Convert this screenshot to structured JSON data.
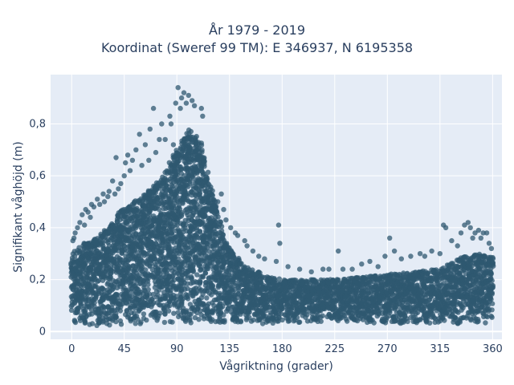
{
  "chart_data": {
    "type": "scatter",
    "title": "År 1979 - 2019",
    "subtitle": "Koordinat (Sweref 99 TM): E 346937, N 6195358",
    "xlabel": "Vågriktning (grader)",
    "ylabel": "Signifikant våghöjd (m)",
    "xlim": [
      -18,
      368
    ],
    "ylim": [
      -0.03,
      0.99
    ],
    "x_ticks": [
      0,
      45,
      90,
      135,
      180,
      225,
      270,
      315,
      360
    ],
    "x_tick_labels": [
      "0",
      "45",
      "90",
      "135",
      "180",
      "225",
      "270",
      "315",
      "360"
    ],
    "y_ticks": [
      0,
      0.2,
      0.4,
      0.6,
      0.8
    ],
    "y_tick_labels": [
      "0",
      "0,2",
      "0,4",
      "0,6",
      "0,8"
    ],
    "grid": true,
    "marker_color": "#2f5870",
    "background": "#e5ecf6",
    "envelope": {
      "x": [
        0,
        10,
        20,
        30,
        45,
        60,
        75,
        90,
        100,
        110,
        120,
        130,
        135,
        150,
        165,
        180,
        225,
        270,
        315,
        330,
        345,
        360
      ],
      "lower": [
        0.03,
        0.02,
        0.02,
        0.02,
        0.02,
        0.03,
        0.03,
        0.03,
        0.03,
        0.03,
        0.03,
        0.03,
        0.03,
        0.03,
        0.03,
        0.03,
        0.04,
        0.03,
        0.03,
        0.03,
        0.03,
        0.03
      ],
      "upper": [
        0.3,
        0.34,
        0.36,
        0.4,
        0.48,
        0.52,
        0.58,
        0.7,
        0.78,
        0.74,
        0.55,
        0.38,
        0.32,
        0.25,
        0.22,
        0.2,
        0.2,
        0.22,
        0.24,
        0.28,
        0.3,
        0.29
      ]
    },
    "outliers": [
      {
        "x": 91,
        "y": 0.94
      },
      {
        "x": 96,
        "y": 0.92
      },
      {
        "x": 100,
        "y": 0.91
      },
      {
        "x": 94,
        "y": 0.9
      },
      {
        "x": 103,
        "y": 0.89
      },
      {
        "x": 89,
        "y": 0.88
      },
      {
        "x": 98,
        "y": 0.88
      },
      {
        "x": 105,
        "y": 0.87
      },
      {
        "x": 70,
        "y": 0.86
      },
      {
        "x": 111,
        "y": 0.86
      },
      {
        "x": 93,
        "y": 0.86
      },
      {
        "x": 84,
        "y": 0.83
      },
      {
        "x": 112,
        "y": 0.83
      },
      {
        "x": 85,
        "y": 0.8
      },
      {
        "x": 77,
        "y": 0.8
      },
      {
        "x": 67,
        "y": 0.78
      },
      {
        "x": 58,
        "y": 0.76
      },
      {
        "x": 75,
        "y": 0.74
      },
      {
        "x": 80,
        "y": 0.74
      },
      {
        "x": 87,
        "y": 0.72
      },
      {
        "x": 63,
        "y": 0.72
      },
      {
        "x": 55,
        "y": 0.7
      },
      {
        "x": 72,
        "y": 0.69
      },
      {
        "x": 48,
        "y": 0.68
      },
      {
        "x": 38,
        "y": 0.67
      },
      {
        "x": 52,
        "y": 0.66
      },
      {
        "x": 66,
        "y": 0.66
      },
      {
        "x": 46,
        "y": 0.65
      },
      {
        "x": 60,
        "y": 0.64
      },
      {
        "x": 50,
        "y": 0.62
      },
      {
        "x": 45,
        "y": 0.6
      },
      {
        "x": 35,
        "y": 0.58
      },
      {
        "x": 42,
        "y": 0.57
      },
      {
        "x": 40,
        "y": 0.55
      },
      {
        "x": 32,
        "y": 0.54
      },
      {
        "x": 37,
        "y": 0.53
      },
      {
        "x": 27,
        "y": 0.53
      },
      {
        "x": 31,
        "y": 0.52
      },
      {
        "x": 22,
        "y": 0.51
      },
      {
        "x": 28,
        "y": 0.5
      },
      {
        "x": 24,
        "y": 0.49
      },
      {
        "x": 17,
        "y": 0.49
      },
      {
        "x": 19,
        "y": 0.48
      },
      {
        "x": 12,
        "y": 0.47
      },
      {
        "x": 14,
        "y": 0.46
      },
      {
        "x": 9,
        "y": 0.45
      },
      {
        "x": 16,
        "y": 0.44
      },
      {
        "x": 7,
        "y": 0.42
      },
      {
        "x": 11,
        "y": 0.41
      },
      {
        "x": 5,
        "y": 0.4
      },
      {
        "x": 3,
        "y": 0.38
      },
      {
        "x": 2,
        "y": 0.36
      },
      {
        "x": 1,
        "y": 0.35
      },
      {
        "x": 128,
        "y": 0.53
      },
      {
        "x": 125,
        "y": 0.5
      },
      {
        "x": 130,
        "y": 0.47
      },
      {
        "x": 132,
        "y": 0.43
      },
      {
        "x": 136,
        "y": 0.4
      },
      {
        "x": 140,
        "y": 0.38
      },
      {
        "x": 142,
        "y": 0.37
      },
      {
        "x": 148,
        "y": 0.35
      },
      {
        "x": 150,
        "y": 0.33
      },
      {
        "x": 155,
        "y": 0.31
      },
      {
        "x": 160,
        "y": 0.29
      },
      {
        "x": 165,
        "y": 0.28
      },
      {
        "x": 177,
        "y": 0.41
      },
      {
        "x": 178,
        "y": 0.34
      },
      {
        "x": 175,
        "y": 0.27
      },
      {
        "x": 185,
        "y": 0.25
      },
      {
        "x": 195,
        "y": 0.24
      },
      {
        "x": 205,
        "y": 0.23
      },
      {
        "x": 215,
        "y": 0.24
      },
      {
        "x": 220,
        "y": 0.24
      },
      {
        "x": 228,
        "y": 0.31
      },
      {
        "x": 232,
        "y": 0.24
      },
      {
        "x": 240,
        "y": 0.24
      },
      {
        "x": 248,
        "y": 0.26
      },
      {
        "x": 255,
        "y": 0.27
      },
      {
        "x": 262,
        "y": 0.25
      },
      {
        "x": 268,
        "y": 0.29
      },
      {
        "x": 272,
        "y": 0.36
      },
      {
        "x": 276,
        "y": 0.31
      },
      {
        "x": 282,
        "y": 0.28
      },
      {
        "x": 290,
        "y": 0.29
      },
      {
        "x": 298,
        "y": 0.3
      },
      {
        "x": 302,
        "y": 0.29
      },
      {
        "x": 308,
        "y": 0.31
      },
      {
        "x": 315,
        "y": 0.3
      },
      {
        "x": 318,
        "y": 0.41
      },
      {
        "x": 320,
        "y": 0.4
      },
      {
        "x": 325,
        "y": 0.35
      },
      {
        "x": 330,
        "y": 0.33
      },
      {
        "x": 333,
        "y": 0.38
      },
      {
        "x": 336,
        "y": 0.41
      },
      {
        "x": 339,
        "y": 0.42
      },
      {
        "x": 341,
        "y": 0.4
      },
      {
        "x": 343,
        "y": 0.36
      },
      {
        "x": 345,
        "y": 0.38
      },
      {
        "x": 348,
        "y": 0.39
      },
      {
        "x": 350,
        "y": 0.36
      },
      {
        "x": 352,
        "y": 0.38
      },
      {
        "x": 355,
        "y": 0.38
      },
      {
        "x": 357,
        "y": 0.34
      },
      {
        "x": 359,
        "y": 0.32
      }
    ]
  }
}
